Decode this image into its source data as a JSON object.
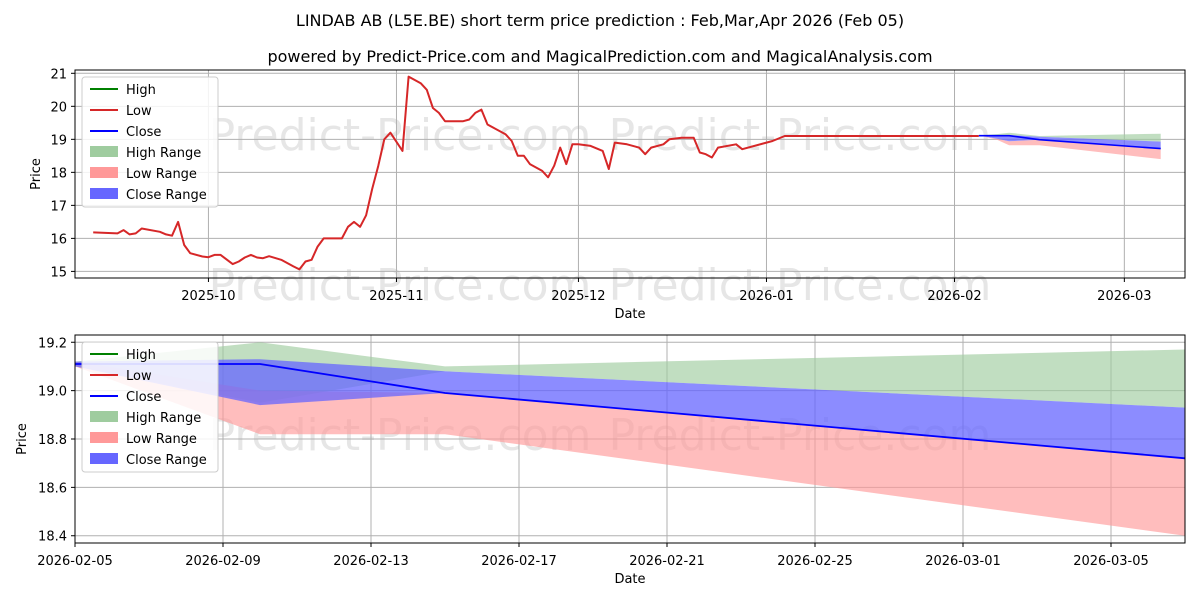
{
  "title_line1": "LINDAB AB (L5E.BE) short term price prediction : Feb,Mar,Apr 2026 (Feb 05)",
  "title_line2": "powered by Predict-Price.com and MagicalPrediction.com and MagicalAnalysis.com",
  "watermark": "Predict-Price.com",
  "colors": {
    "high": "#008000",
    "low": "#d62728",
    "close": "#0000ff",
    "high_range": "#9fcc9f",
    "low_range": "#ff9999",
    "close_range": "#6666ff"
  },
  "chart_data": [
    {
      "type": "line",
      "name": "overview",
      "xlabel": "Date",
      "ylabel": "Price",
      "xlim": [
        "2025-09-09",
        "2026-03-11"
      ],
      "ylim": [
        14.8,
        21.1
      ],
      "yticks": [
        15,
        16,
        17,
        18,
        19,
        20,
        21
      ],
      "xticks": [
        "2025-10-01",
        "2025-11-01",
        "2025-12-01",
        "2026-01-01",
        "2026-02-01",
        "2026-03-01"
      ],
      "xtick_labels": [
        "2025-10",
        "2025-11",
        "2025-12",
        "2026-01",
        "2026-02",
        "2026-03"
      ],
      "legend": [
        "High",
        "Low",
        "Close",
        "High Range",
        "Low Range",
        "Close Range"
      ],
      "legend_position": "top-left",
      "history": [
        [
          "2025-09-12",
          16.18
        ],
        [
          "2025-09-15",
          16.16
        ],
        [
          "2025-09-16",
          16.15
        ],
        [
          "2025-09-17",
          16.25
        ],
        [
          "2025-09-18",
          16.12
        ],
        [
          "2025-09-19",
          16.15
        ],
        [
          "2025-09-20",
          16.3
        ],
        [
          "2025-09-23",
          16.2
        ],
        [
          "2025-09-24",
          16.12
        ],
        [
          "2025-09-25",
          16.08
        ],
        [
          "2025-09-26",
          16.5
        ],
        [
          "2025-09-27",
          15.8
        ],
        [
          "2025-09-28",
          15.55
        ],
        [
          "2025-09-30",
          15.45
        ],
        [
          "2025-10-01",
          15.43
        ],
        [
          "2025-10-02",
          15.5
        ],
        [
          "2025-10-03",
          15.5
        ],
        [
          "2025-10-05",
          15.22
        ],
        [
          "2025-10-06",
          15.3
        ],
        [
          "2025-10-07",
          15.42
        ],
        [
          "2025-10-08",
          15.5
        ],
        [
          "2025-10-09",
          15.42
        ],
        [
          "2025-10-10",
          15.4
        ],
        [
          "2025-10-11",
          15.46
        ],
        [
          "2025-10-13",
          15.35
        ],
        [
          "2025-10-15",
          15.15
        ],
        [
          "2025-10-16",
          15.06
        ],
        [
          "2025-10-17",
          15.3
        ],
        [
          "2025-10-18",
          15.35
        ],
        [
          "2025-10-19",
          15.75
        ],
        [
          "2025-10-20",
          16.0
        ],
        [
          "2025-10-21",
          16.0
        ],
        [
          "2025-10-23",
          16.0
        ],
        [
          "2025-10-24",
          16.35
        ],
        [
          "2025-10-25",
          16.5
        ],
        [
          "2025-10-26",
          16.35
        ],
        [
          "2025-10-27",
          16.7
        ],
        [
          "2025-10-28",
          17.5
        ],
        [
          "2025-10-29",
          18.2
        ],
        [
          "2025-10-30",
          19.0
        ],
        [
          "2025-10-31",
          19.2
        ],
        [
          "2025-11-02",
          18.65
        ],
        [
          "2025-11-03",
          20.9
        ],
        [
          "2025-11-05",
          20.7
        ],
        [
          "2025-11-06",
          20.5
        ],
        [
          "2025-11-07",
          19.95
        ],
        [
          "2025-11-08",
          19.8
        ],
        [
          "2025-11-09",
          19.55
        ],
        [
          "2025-11-12",
          19.55
        ],
        [
          "2025-11-13",
          19.6
        ],
        [
          "2025-11-14",
          19.8
        ],
        [
          "2025-11-15",
          19.9
        ],
        [
          "2025-11-16",
          19.45
        ],
        [
          "2025-11-17",
          19.35
        ],
        [
          "2025-11-19",
          19.15
        ],
        [
          "2025-11-20",
          18.95
        ],
        [
          "2025-11-21",
          18.5
        ],
        [
          "2025-11-22",
          18.5
        ],
        [
          "2025-11-23",
          18.25
        ],
        [
          "2025-11-25",
          18.05
        ],
        [
          "2025-11-26",
          17.85
        ],
        [
          "2025-11-27",
          18.2
        ],
        [
          "2025-11-28",
          18.75
        ],
        [
          "2025-11-29",
          18.25
        ],
        [
          "2025-11-30",
          18.85
        ],
        [
          "2025-12-01",
          18.85
        ],
        [
          "2025-12-03",
          18.8
        ],
        [
          "2025-12-05",
          18.65
        ],
        [
          "2025-12-06",
          18.1
        ],
        [
          "2025-12-07",
          18.9
        ],
        [
          "2025-12-09",
          18.85
        ],
        [
          "2025-12-11",
          18.75
        ],
        [
          "2025-12-12",
          18.55
        ],
        [
          "2025-12-13",
          18.75
        ],
        [
          "2025-12-15",
          18.85
        ],
        [
          "2025-12-16",
          19.0
        ],
        [
          "2025-12-18",
          19.05
        ],
        [
          "2025-12-20",
          19.05
        ],
        [
          "2025-12-21",
          18.6
        ],
        [
          "2025-12-22",
          18.55
        ],
        [
          "2025-12-23",
          18.45
        ],
        [
          "2025-12-24",
          18.75
        ],
        [
          "2025-12-27",
          18.85
        ],
        [
          "2025-12-28",
          18.7
        ],
        [
          "2026-01-02",
          18.95
        ],
        [
          "2026-01-04",
          19.1
        ],
        [
          "2026-02-05",
          19.1
        ]
      ],
      "forecast": {
        "dates": [
          "2026-02-05",
          "2026-02-08",
          "2026-02-10",
          "2026-02-15",
          "2026-03-07"
        ],
        "high_upper": [
          19.12,
          19.16,
          19.2,
          19.1,
          19.17
        ],
        "low_lower": [
          19.12,
          18.99,
          18.82,
          18.82,
          18.4
        ],
        "close_upper": [
          19.12,
          19.12,
          19.13,
          19.08,
          18.93
        ],
        "close_lower": [
          19.12,
          19.02,
          18.94,
          18.99,
          18.72
        ],
        "close": [
          19.11,
          19.11,
          19.11,
          18.99,
          18.72
        ]
      }
    },
    {
      "type": "line",
      "name": "forecast_detail",
      "xlabel": "Date",
      "ylabel": "Price",
      "xlim": [
        "2026-02-05",
        "2026-03-07"
      ],
      "ylim": [
        18.37,
        19.23
      ],
      "yticks": [
        18.4,
        18.6,
        18.8,
        19.0,
        19.2
      ],
      "xticks": [
        "2026-02-05",
        "2026-02-09",
        "2026-02-13",
        "2026-02-17",
        "2026-02-21",
        "2026-02-25",
        "2026-03-01",
        "2026-03-05"
      ],
      "xtick_labels": [
        "2026-02-05",
        "2026-02-09",
        "2026-02-13",
        "2026-02-17",
        "2026-02-21",
        "2026-02-25",
        "2026-03-01",
        "2026-03-05"
      ],
      "legend": [
        "High",
        "Low",
        "Close",
        "High Range",
        "Low Range",
        "Close Range"
      ],
      "legend_position": "top-left",
      "high_range": {
        "dates": [
          "2026-02-05",
          "2026-02-10",
          "2026-02-15",
          "2026-03-07"
        ],
        "upper": [
          19.12,
          19.2,
          19.1,
          19.17
        ],
        "lower": [
          19.1,
          18.95,
          19.08,
          18.93
        ]
      },
      "low_range": {
        "dates": [
          "2026-02-05",
          "2026-02-10",
          "2026-02-15",
          "2026-03-07"
        ],
        "upper": [
          19.12,
          19.0,
          18.99,
          18.72
        ],
        "lower": [
          19.1,
          18.82,
          18.82,
          18.4
        ]
      },
      "close_range": {
        "dates": [
          "2026-02-05",
          "2026-02-10",
          "2026-02-15",
          "2026-03-07"
        ],
        "upper": [
          19.12,
          19.13,
          19.08,
          18.93
        ],
        "lower": [
          19.1,
          18.94,
          18.99,
          18.72
        ]
      },
      "close": {
        "dates": [
          "2026-02-05",
          "2026-02-08",
          "2026-02-10",
          "2026-02-15",
          "2026-03-07"
        ],
        "values": [
          19.11,
          19.11,
          19.11,
          18.99,
          18.72
        ]
      }
    }
  ]
}
